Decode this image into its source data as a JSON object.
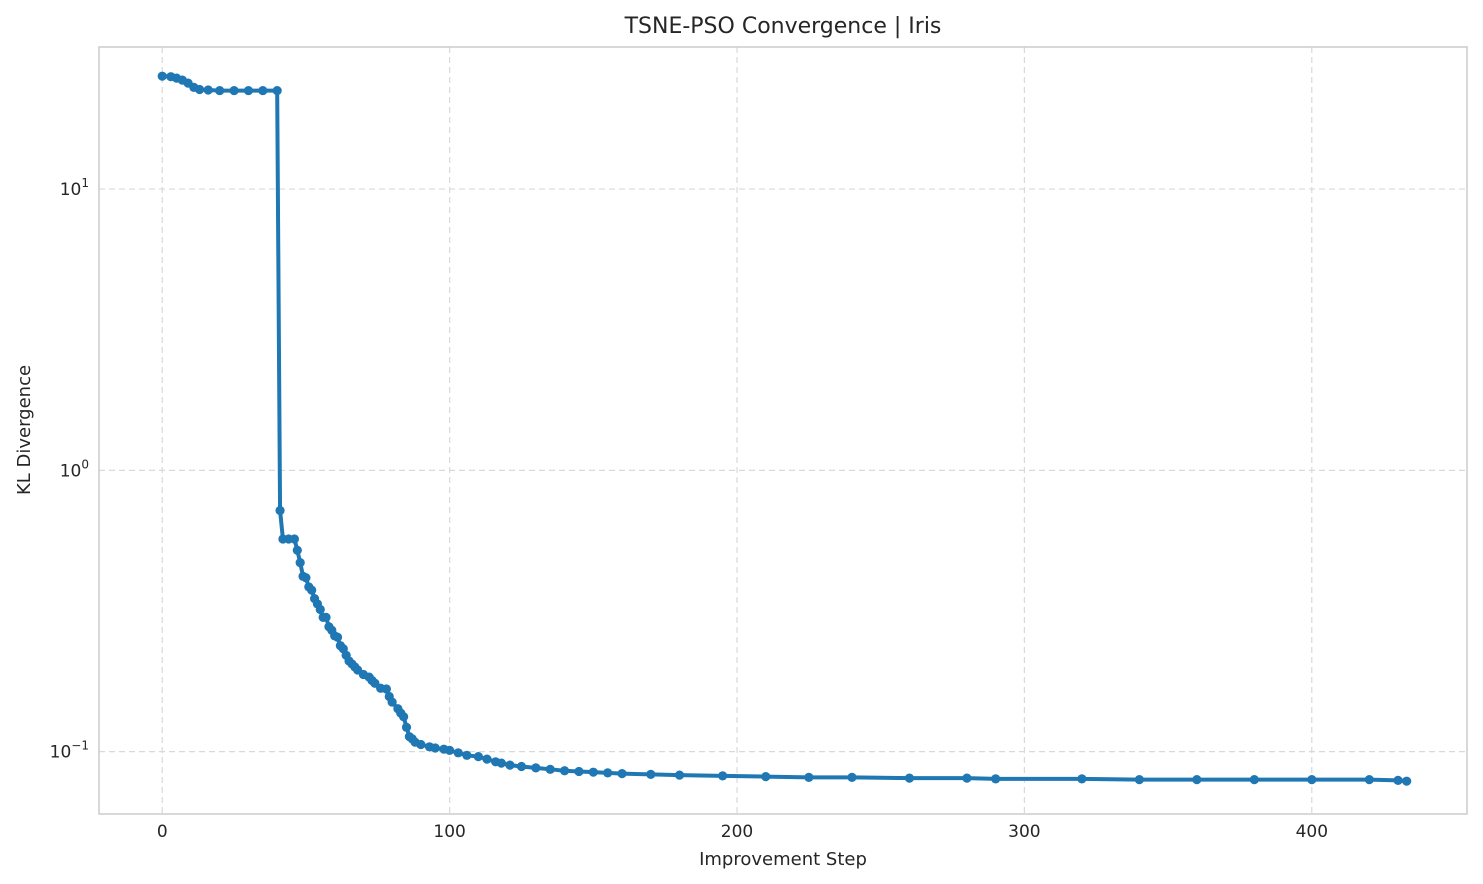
{
  "chart_data": {
    "type": "line",
    "title": "TSNE-PSO Convergence | Iris",
    "xlabel": "Improvement Step",
    "ylabel": "KL Divergence",
    "xlim": [
      -22,
      454
    ],
    "ylim": [
      0.06,
      32
    ],
    "yscale": "log",
    "grid": true,
    "xticks": [
      0,
      100,
      200,
      300,
      400
    ],
    "yticks": [
      {
        "value": 0.1,
        "base": "10",
        "exp": "−1"
      },
      {
        "value": 1,
        "base": "10",
        "exp": "0"
      },
      {
        "value": 10,
        "base": "10",
        "exp": "1"
      }
    ],
    "color": "#1f77b4",
    "series": [
      {
        "points": [
          [
            0,
            25.2
          ],
          [
            3,
            25.1
          ],
          [
            5,
            24.8
          ],
          [
            7,
            24.4
          ],
          [
            9,
            23.8
          ],
          [
            11,
            23.0
          ],
          [
            13,
            22.6
          ],
          [
            16,
            22.5
          ],
          [
            20,
            22.4
          ],
          [
            25,
            22.4
          ],
          [
            30,
            22.4
          ],
          [
            35,
            22.4
          ],
          [
            40,
            22.4
          ],
          [
            41,
            0.72
          ],
          [
            42,
            0.57
          ],
          [
            44,
            0.57
          ],
          [
            46,
            0.57
          ],
          [
            47,
            0.52
          ],
          [
            48,
            0.47
          ],
          [
            49,
            0.42
          ],
          [
            50,
            0.415
          ],
          [
            51,
            0.385
          ],
          [
            52,
            0.375
          ],
          [
            53,
            0.35
          ],
          [
            54,
            0.335
          ],
          [
            55,
            0.32
          ],
          [
            56,
            0.3
          ],
          [
            57,
            0.3
          ],
          [
            58,
            0.278
          ],
          [
            59,
            0.27
          ],
          [
            60,
            0.258
          ],
          [
            61,
            0.255
          ],
          [
            62,
            0.238
          ],
          [
            63,
            0.232
          ],
          [
            64,
            0.22
          ],
          [
            65,
            0.21
          ],
          [
            66,
            0.205
          ],
          [
            67,
            0.2
          ],
          [
            68,
            0.195
          ],
          [
            70,
            0.188
          ],
          [
            72,
            0.184
          ],
          [
            73,
            0.179
          ],
          [
            74,
            0.175
          ],
          [
            76,
            0.168
          ],
          [
            78,
            0.167
          ],
          [
            79,
            0.157
          ],
          [
            80,
            0.15
          ],
          [
            82,
            0.142
          ],
          [
            83,
            0.137
          ],
          [
            84,
            0.133
          ],
          [
            85,
            0.122
          ],
          [
            86,
            0.113
          ],
          [
            87,
            0.111
          ],
          [
            88,
            0.108
          ],
          [
            90,
            0.106
          ],
          [
            93,
            0.104
          ],
          [
            95,
            0.103
          ],
          [
            98,
            0.102
          ],
          [
            100,
            0.101
          ],
          [
            103,
            0.099
          ],
          [
            106,
            0.097
          ],
          [
            110,
            0.096
          ],
          [
            113,
            0.094
          ],
          [
            116,
            0.092
          ],
          [
            118,
            0.091
          ],
          [
            121,
            0.0895
          ],
          [
            125,
            0.0885
          ],
          [
            130,
            0.0875
          ],
          [
            135,
            0.0865
          ],
          [
            140,
            0.0855
          ],
          [
            145,
            0.085
          ],
          [
            150,
            0.0845
          ],
          [
            155,
            0.084
          ],
          [
            160,
            0.0835
          ],
          [
            170,
            0.083
          ],
          [
            180,
            0.0825
          ],
          [
            195,
            0.082
          ],
          [
            210,
            0.0815
          ],
          [
            225,
            0.081
          ],
          [
            240,
            0.081
          ],
          [
            260,
            0.0805
          ],
          [
            280,
            0.0805
          ],
          [
            290,
            0.08
          ],
          [
            320,
            0.08
          ],
          [
            340,
            0.0795
          ],
          [
            360,
            0.0795
          ],
          [
            380,
            0.0795
          ],
          [
            400,
            0.0795
          ],
          [
            420,
            0.0795
          ],
          [
            430,
            0.079
          ],
          [
            433,
            0.0785
          ]
        ]
      }
    ]
  }
}
